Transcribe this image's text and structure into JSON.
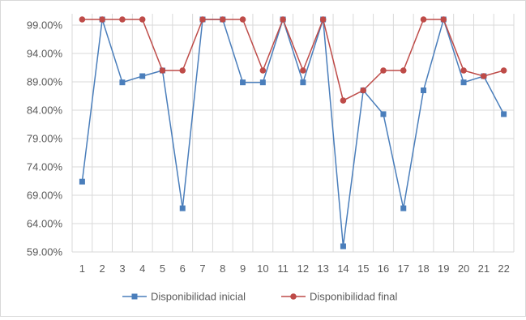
{
  "chart_data": {
    "type": "line",
    "categories": [
      "1",
      "2",
      "3",
      "4",
      "5",
      "6",
      "7",
      "8",
      "9",
      "10",
      "11",
      "12",
      "13",
      "14",
      "15",
      "16",
      "17",
      "18",
      "19",
      "20",
      "21",
      "22"
    ],
    "y_tick_labels": [
      "59.00%",
      "64.00%",
      "69.00%",
      "74.00%",
      "79.00%",
      "84.00%",
      "89.00%",
      "94.00%",
      "99.00%"
    ],
    "ylim": [
      59.0,
      101.0
    ],
    "grid": true,
    "legend_position": "bottom",
    "series": [
      {
        "name": "Disponibilidad inicial",
        "color": "#4a7ebb",
        "marker": "square",
        "values": [
          71.4,
          100.0,
          88.9,
          90.0,
          91.0,
          66.7,
          100.0,
          100.0,
          88.9,
          88.9,
          100.0,
          88.9,
          100.0,
          60.0,
          87.5,
          83.3,
          66.7,
          87.5,
          100.0,
          88.9,
          90.0,
          83.3
        ]
      },
      {
        "name": "Disponibilidad final",
        "color": "#be4b48",
        "marker": "circle",
        "values": [
          100.0,
          100.0,
          100.0,
          100.0,
          91.0,
          91.0,
          100.0,
          100.0,
          100.0,
          91.0,
          100.0,
          91.0,
          100.0,
          85.7,
          87.5,
          91.0,
          91.0,
          100.0,
          100.0,
          91.0,
          90.0,
          91.0
        ]
      }
    ]
  }
}
